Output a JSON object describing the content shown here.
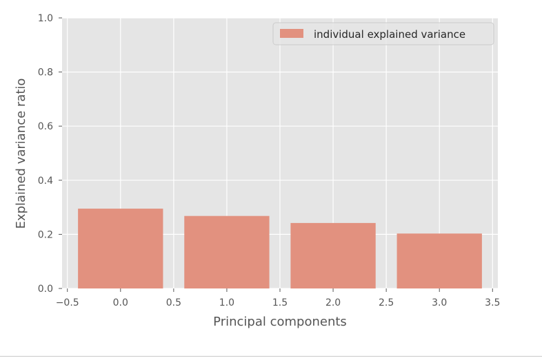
{
  "chart_data": {
    "type": "bar",
    "x": [
      0,
      1,
      2,
      3
    ],
    "values": [
      0.295,
      0.268,
      0.242,
      0.203
    ],
    "bar_width": 0.8,
    "xlabel": "Principal components",
    "ylabel": "Explained variance ratio",
    "xlim": [
      -0.55,
      3.55
    ],
    "ylim": [
      0.0,
      1.0
    ],
    "xticks": [
      -0.5,
      0.0,
      0.5,
      1.0,
      1.5,
      2.0,
      2.5,
      3.0,
      3.5
    ],
    "xtick_labels": [
      "−0.5",
      "0.0",
      "0.5",
      "1.0",
      "1.5",
      "2.0",
      "2.5",
      "3.0",
      "3.5"
    ],
    "yticks": [
      0.0,
      0.2,
      0.4,
      0.6,
      0.8,
      1.0
    ],
    "ytick_labels": [
      "0.0",
      "0.2",
      "0.4",
      "0.6",
      "0.8",
      "1.0"
    ],
    "grid": true,
    "legend": {
      "position": "top-right",
      "entries": [
        "individual explained variance"
      ]
    },
    "colors": {
      "bar": "#E2917F",
      "plot_background": "#E5E5E5",
      "grid": "#FFFFFF",
      "text": "#555555"
    }
  }
}
